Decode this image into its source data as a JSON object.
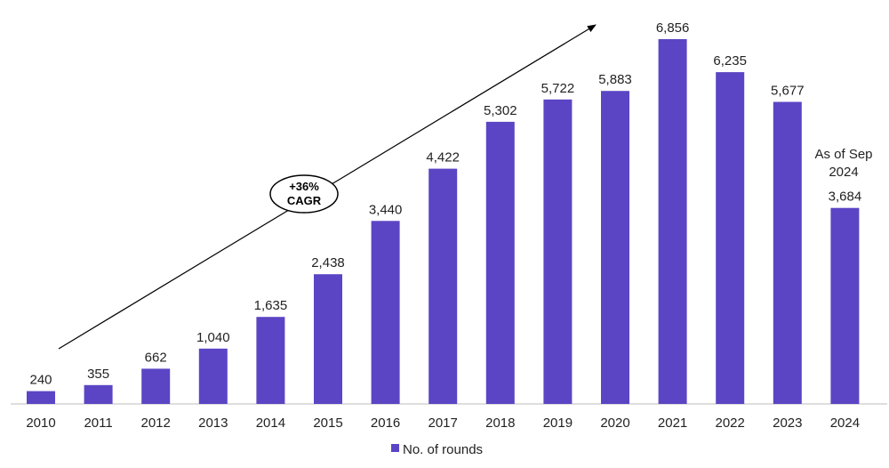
{
  "chart_data": {
    "type": "bar",
    "categories": [
      "2010",
      "2011",
      "2012",
      "2013",
      "2014",
      "2015",
      "2016",
      "2017",
      "2018",
      "2019",
      "2020",
      "2021",
      "2022",
      "2023",
      "2024"
    ],
    "series": [
      {
        "name": "No. of rounds",
        "values": [
          240,
          355,
          662,
          1040,
          1635,
          2438,
          3440,
          4422,
          5302,
          5722,
          5883,
          6856,
          6235,
          5677,
          3684
        ],
        "labels": [
          "240",
          "355",
          "662",
          "1,040",
          "1,635",
          "2,438",
          "3,440",
          "4,422",
          "5,302",
          "5,722",
          "5,883",
          "6,856",
          "6,235",
          "5,677",
          "3,684"
        ]
      }
    ],
    "ylim": [
      0,
      6856
    ],
    "bar_color": "#5b45c4",
    "grid": false,
    "legend": {
      "position": "bottom-center",
      "label": "No. of rounds"
    },
    "annotations": {
      "cagr_line1": "+36%",
      "cagr_line2": "CAGR",
      "last_bar_note_line1": "As of Sep",
      "last_bar_note_line2": "2024"
    }
  }
}
